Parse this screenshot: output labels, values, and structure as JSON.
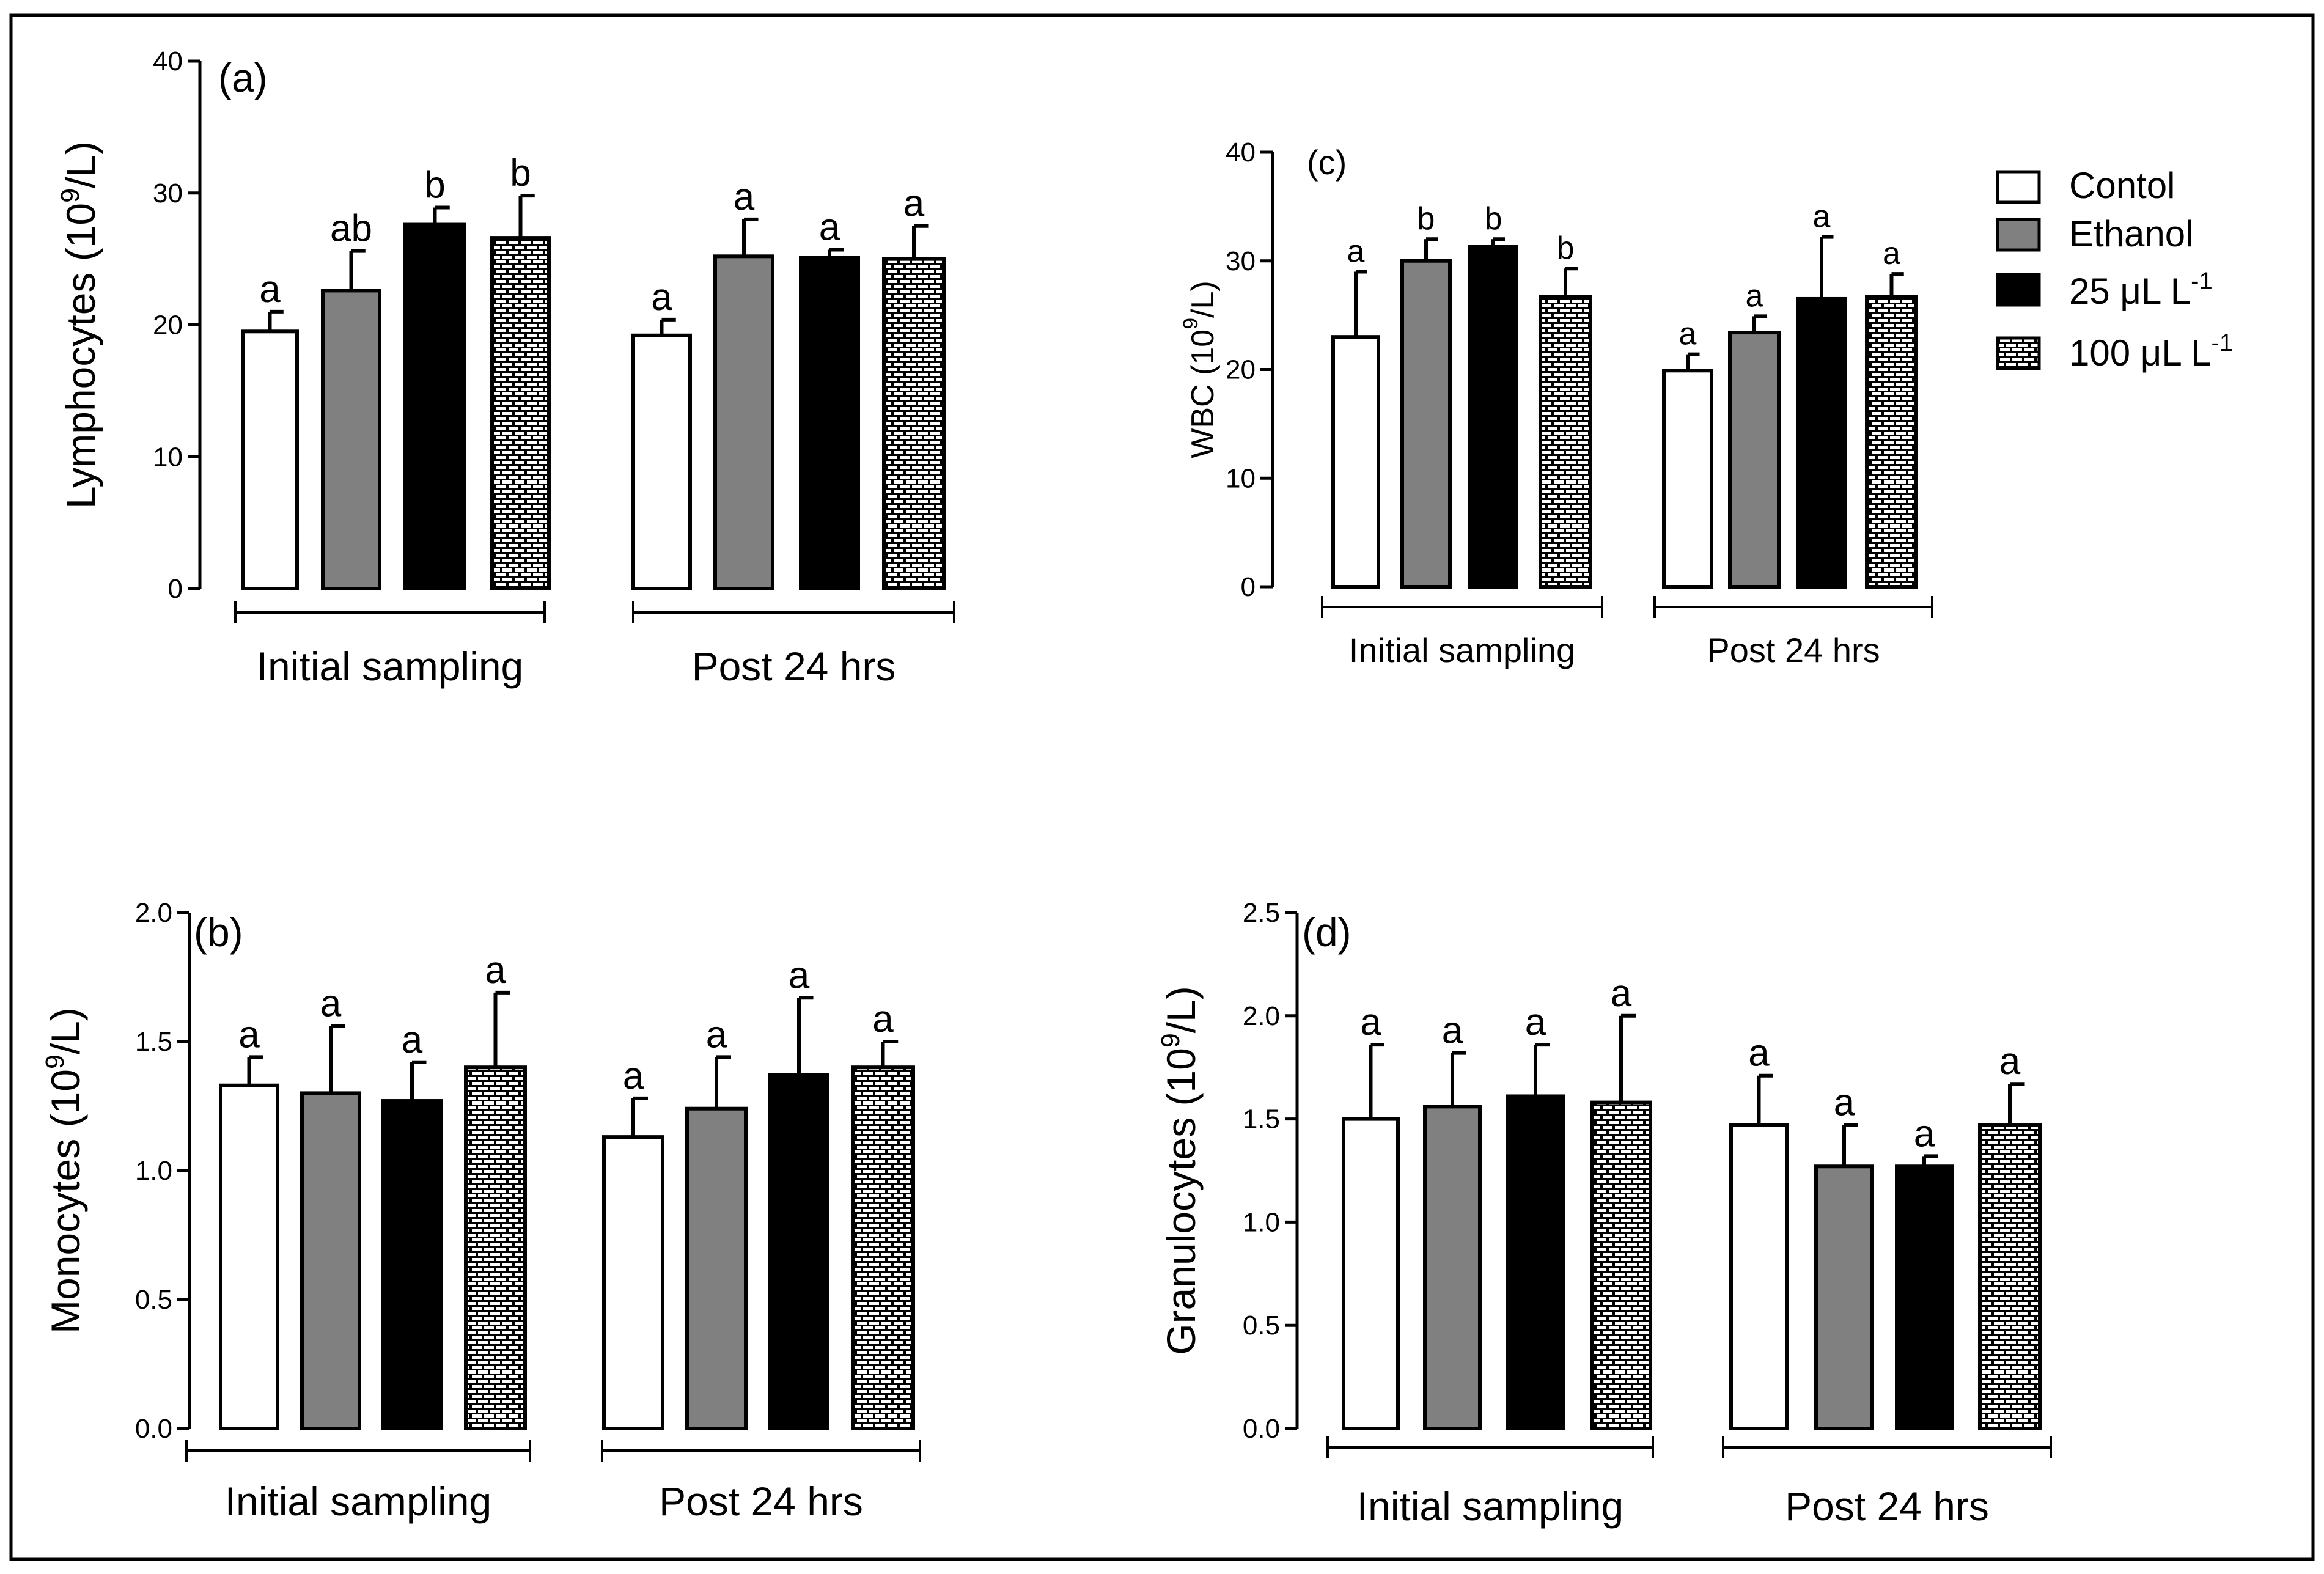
{
  "chart_data": [
    {
      "panel": "(a)",
      "type": "bar",
      "ylabel_main": "Lymphocytes (10",
      "ylabel_sup": "9",
      "ylabel_tail": "/L)",
      "ylim": [
        0,
        40
      ],
      "yticks": [
        "0",
        "10",
        "20",
        "30",
        "40"
      ],
      "ytick_values": [
        0,
        10,
        20,
        30,
        40
      ],
      "groups": [
        "Initial sampling",
        "Post 24 hrs"
      ],
      "series": [
        {
          "values": [
            19.5,
            19.2
          ],
          "errors": [
            1.5,
            1.2
          ],
          "letters": [
            "a",
            "a"
          ]
        },
        {
          "values": [
            22.6,
            25.2
          ],
          "errors": [
            3.0,
            2.8
          ],
          "letters": [
            "ab",
            "a"
          ]
        },
        {
          "values": [
            27.6,
            25.1
          ],
          "errors": [
            1.3,
            0.6
          ],
          "letters": [
            "b",
            "a"
          ]
        },
        {
          "values": [
            26.6,
            25.0
          ],
          "errors": [
            3.2,
            2.5
          ],
          "letters": [
            "b",
            "a"
          ]
        }
      ]
    },
    {
      "panel": "(b)",
      "type": "bar",
      "ylabel_main": "Monocytes (10",
      "ylabel_sup": "9",
      "ylabel_tail": "/L)",
      "ylim": [
        0,
        2.0
      ],
      "yticks": [
        "0.0",
        "0.5",
        "1.0",
        "1.5",
        "2.0"
      ],
      "ytick_values": [
        0,
        0.5,
        1.0,
        1.5,
        2.0
      ],
      "groups": [
        "Initial sampling",
        "Post 24 hrs"
      ],
      "series": [
        {
          "values": [
            1.33,
            1.13
          ],
          "errors": [
            0.11,
            0.15
          ],
          "letters": [
            "a",
            "a"
          ]
        },
        {
          "values": [
            1.3,
            1.24
          ],
          "errors": [
            0.26,
            0.2
          ],
          "letters": [
            "a",
            "a"
          ]
        },
        {
          "values": [
            1.27,
            1.37
          ],
          "errors": [
            0.15,
            0.3
          ],
          "letters": [
            "a",
            "a"
          ]
        },
        {
          "values": [
            1.4,
            1.4
          ],
          "errors": [
            0.29,
            0.1
          ],
          "letters": [
            "a",
            "a"
          ]
        }
      ]
    },
    {
      "panel": "(c)",
      "type": "bar",
      "ylabel_main": "WBC (10",
      "ylabel_sup": "9",
      "ylabel_tail": "/L)",
      "ylim": [
        0,
        40
      ],
      "yticks": [
        "0",
        "10",
        "20",
        "30",
        "40"
      ],
      "ytick_values": [
        0,
        10,
        20,
        30,
        40
      ],
      "groups": [
        "Initial sampling",
        "Post 24 hrs"
      ],
      "series": [
        {
          "values": [
            23.0,
            19.9
          ],
          "errors": [
            6.0,
            1.5
          ],
          "letters": [
            "a",
            "a"
          ]
        },
        {
          "values": [
            30.0,
            23.4
          ],
          "errors": [
            2.0,
            1.5
          ],
          "letters": [
            "b",
            "a"
          ]
        },
        {
          "values": [
            31.3,
            26.5
          ],
          "errors": [
            0.7,
            5.7
          ],
          "letters": [
            "b",
            "a"
          ]
        },
        {
          "values": [
            26.7,
            26.7
          ],
          "errors": [
            2.6,
            2.1
          ],
          "letters": [
            "b",
            "a"
          ]
        }
      ]
    },
    {
      "panel": "(d)",
      "type": "bar",
      "ylabel_main": "Granulocytes (10",
      "ylabel_sup": "9",
      "ylabel_tail": "/L)",
      "ylim": [
        0,
        2.5
      ],
      "yticks": [
        "0.0",
        "0.5",
        "1.0",
        "1.5",
        "2.0",
        "2.5"
      ],
      "ytick_values": [
        0,
        0.5,
        1.0,
        1.5,
        2.0,
        2.5
      ],
      "groups": [
        "Initial sampling",
        "Post 24 hrs"
      ],
      "series": [
        {
          "values": [
            1.5,
            1.47
          ],
          "errors": [
            0.36,
            0.24
          ],
          "letters": [
            "a",
            "a"
          ]
        },
        {
          "values": [
            1.56,
            1.27
          ],
          "errors": [
            0.26,
            0.2
          ],
          "letters": [
            "a",
            "a"
          ]
        },
        {
          "values": [
            1.61,
            1.27
          ],
          "errors": [
            0.25,
            0.05
          ],
          "letters": [
            "a",
            "a"
          ]
        },
        {
          "values": [
            1.58,
            1.47
          ],
          "errors": [
            0.42,
            0.2
          ],
          "letters": [
            "a",
            "a"
          ]
        }
      ]
    }
  ],
  "legend": {
    "position": "top-right",
    "entries": [
      {
        "label": "Contol",
        "fill": "#ffffff",
        "pattern": "none"
      },
      {
        "label": "Ethanol",
        "fill": "#808080",
        "pattern": "none"
      },
      {
        "label": "25 μL L",
        "sup": "-1",
        "fill": "#000000",
        "pattern": "none"
      },
      {
        "label": "100 μL L",
        "sup": "-1",
        "fill": "#ffffff",
        "pattern": "brick"
      }
    ]
  },
  "colors": {
    "control": "#ffffff",
    "ethanol": "#808080",
    "dose25": "#000000",
    "dose100_brick": "#000000",
    "frame": "#000000"
  }
}
